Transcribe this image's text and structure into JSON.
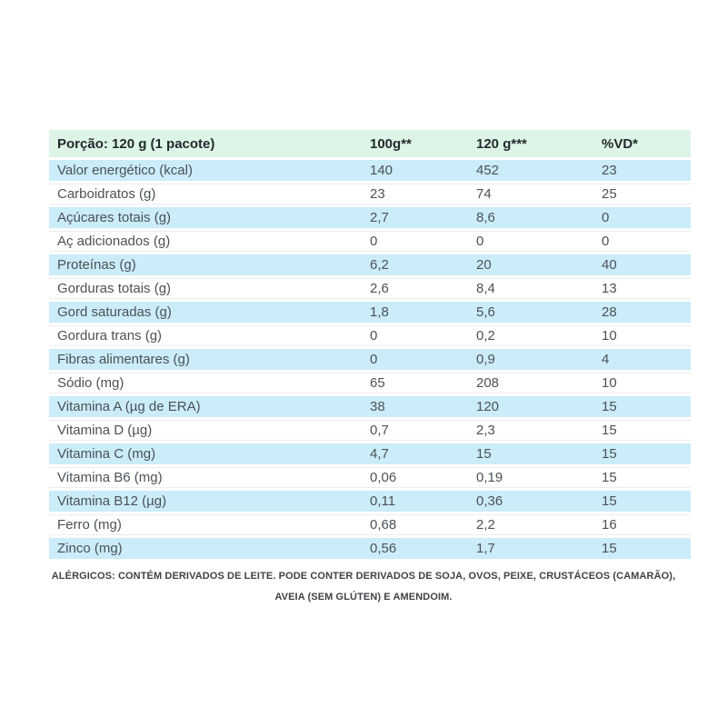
{
  "colors": {
    "header_green": "#dcf5e6",
    "row_blue": "#cbecf9",
    "row_white": "#ffffff",
    "header_text": "#24292e",
    "body_text": "#4c5257",
    "footer_text": "#3f4347"
  },
  "table": {
    "header": {
      "serving": "Porção: 120 g (1 pacote)",
      "col_100g": "100g**",
      "col_120g": "120 g***",
      "col_vd": "%VD*"
    },
    "rows": [
      {
        "label": "Valor energético (kcal)",
        "g100": "140",
        "g120": "452",
        "vd": "23"
      },
      {
        "label": "Carboidratos (g)",
        "g100": "23",
        "g120": "74",
        "vd": "25"
      },
      {
        "label": "Açúcares totais (g)",
        "g100": "2,7",
        "g120": "8,6",
        "vd": "0"
      },
      {
        "label": "Aç adicionados (g)",
        "g100": "0",
        "g120": "0",
        "vd": "0"
      },
      {
        "label": "Proteínas (g)",
        "g100": "6,2",
        "g120": "20",
        "vd": "40"
      },
      {
        "label": "Gorduras totais (g)",
        "g100": "2,6",
        "g120": "8,4",
        "vd": "13"
      },
      {
        "label": "Gord saturadas (g)",
        "g100": "1,8",
        "g120": "5,6",
        "vd": "28"
      },
      {
        "label": "Gordura trans (g)",
        "g100": "0",
        "g120": "0,2",
        "vd": "10"
      },
      {
        "label": "Fibras alimentares (g)",
        "g100": "0",
        "g120": "0,9",
        "vd": "4"
      },
      {
        "label": "Sódio (mg)",
        "g100": "65",
        "g120": "208",
        "vd": "10"
      },
      {
        "label": "Vitamina A (µg de ERA)",
        "g100": "38",
        "g120": "120",
        "vd": "15"
      },
      {
        "label": "Vitamina D (µg)",
        "g100": "0,7",
        "g120": "2,3",
        "vd": "15"
      },
      {
        "label": "Vitamina C (mg)",
        "g100": "4,7",
        "g120": "15",
        "vd": "15"
      },
      {
        "label": "Vitamina B6 (mg)",
        "g100": "0,06",
        "g120": "0,19",
        "vd": "15"
      },
      {
        "label": "Vitamina B12 (µg)",
        "g100": "0,11",
        "g120": "0,36",
        "vd": "15"
      },
      {
        "label": "Ferro (mg)",
        "g100": "0,68",
        "g120": "2,2",
        "vd": "16"
      },
      {
        "label": "Zinco (mg)",
        "g100": "0,56",
        "g120": "1,7",
        "vd": "15"
      }
    ]
  },
  "footer": {
    "lines": [
      "ALÉRGICOS: CONTÉM DERIVADOS DE LEITE. PODE CONTER DERIVADOS DE SOJA, OVOS, PEIXE, CRUSTÁCEOS (CAMARÃO),",
      "AVEIA (SEM GLÚTEN) E AMENDOIM."
    ]
  }
}
